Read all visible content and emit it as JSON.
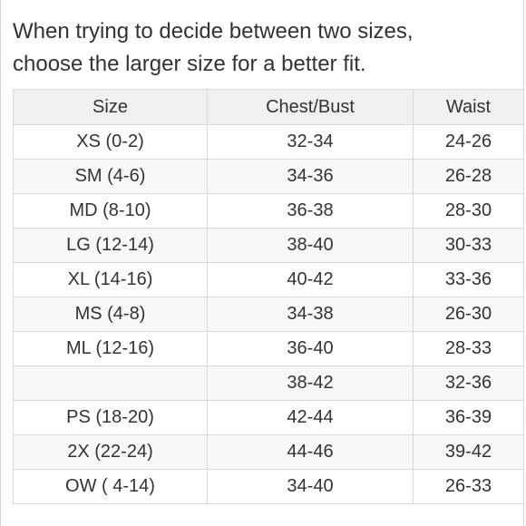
{
  "intro": {
    "line1": "When trying to decide between two sizes,",
    "line2": "choose the larger size for a better fit."
  },
  "table": {
    "headers": [
      "Size",
      "Chest/Bust",
      "Waist"
    ],
    "rows": [
      [
        "XS (0-2)",
        "32-34",
        "24-26"
      ],
      [
        "SM (4-6)",
        "34-36",
        "26-28"
      ],
      [
        "MD (8-10)",
        "36-38",
        "28-30"
      ],
      [
        "LG (12-14)",
        "38-40",
        "30-33"
      ],
      [
        "XL (14-16)",
        "40-42",
        "33-36"
      ],
      [
        "MS (4-8)",
        "34-38",
        "26-30"
      ],
      [
        "ML (12-16)",
        "36-40",
        "28-33"
      ],
      [
        "",
        "38-42",
        "32-36"
      ],
      [
        "PS (18-20)",
        "42-44",
        "36-39"
      ],
      [
        "2X (22-24)",
        "44-46",
        "39-42"
      ],
      [
        "OW ( 4-14)",
        "34-40",
        "26-33"
      ]
    ]
  }
}
